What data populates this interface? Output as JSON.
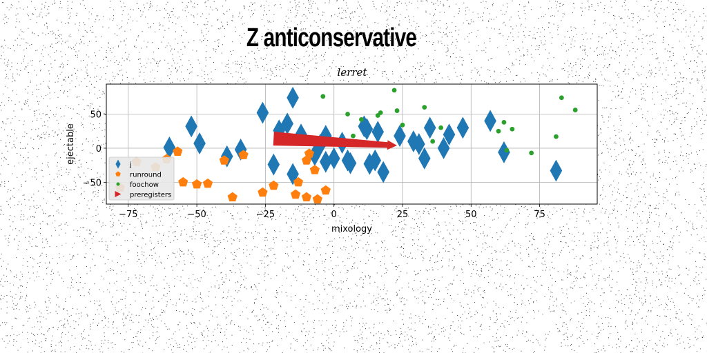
{
  "suptitle": "Z anticonservative",
  "chart_data": {
    "type": "scatter",
    "title": "lerret",
    "xlabel": "mixology",
    "ylabel": "ejectable",
    "xlim": [
      -83,
      96
    ],
    "ylim": [
      -82,
      94
    ],
    "xticks": [
      -75,
      -50,
      -25,
      0,
      25,
      50,
      75
    ],
    "yticks": [
      -50,
      0,
      50
    ],
    "grid": true,
    "legend_position": "lower-left",
    "series": [
      {
        "name": "j",
        "marker": "diamond",
        "color": "#1f77b4",
        "points": [
          [
            -60,
            1
          ],
          [
            -52,
            32
          ],
          [
            -49,
            7
          ],
          [
            -39,
            -12
          ],
          [
            -34,
            -2
          ],
          [
            -26,
            52
          ],
          [
            -22,
            -24
          ],
          [
            -20,
            26
          ],
          [
            -17,
            36
          ],
          [
            -15,
            74
          ],
          [
            -15,
            -38
          ],
          [
            -12,
            20
          ],
          [
            -7,
            -10
          ],
          [
            -5,
            5
          ],
          [
            -3,
            18
          ],
          [
            -3,
            -20
          ],
          [
            0,
            -15
          ],
          [
            3,
            8
          ],
          [
            5,
            -18
          ],
          [
            6,
            -22
          ],
          [
            11,
            32
          ],
          [
            12,
            28
          ],
          [
            13,
            -23
          ],
          [
            15,
            -18
          ],
          [
            16,
            24
          ],
          [
            18,
            -35
          ],
          [
            24,
            18
          ],
          [
            29,
            10
          ],
          [
            31,
            6
          ],
          [
            33,
            -15
          ],
          [
            35,
            30
          ],
          [
            40,
            0
          ],
          [
            42,
            20
          ],
          [
            47,
            30
          ],
          [
            57,
            40
          ],
          [
            62,
            -6
          ],
          [
            81,
            -33
          ]
        ]
      },
      {
        "name": "runround",
        "marker": "pentagon",
        "color": "#ff7f0e",
        "points": [
          [
            -78,
            -58
          ],
          [
            -72,
            -20
          ],
          [
            -65,
            -28
          ],
          [
            -61,
            -16
          ],
          [
            -57,
            -5
          ],
          [
            -55,
            -50
          ],
          [
            -50,
            -53
          ],
          [
            -46,
            -52
          ],
          [
            -40,
            -18
          ],
          [
            -37,
            -72
          ],
          [
            -33,
            -10
          ],
          [
            -26,
            -65
          ],
          [
            -22,
            -55
          ],
          [
            -14,
            -68
          ],
          [
            -13,
            -50
          ],
          [
            -10,
            -18
          ],
          [
            -9,
            -8
          ],
          [
            -10,
            -72
          ],
          [
            -7,
            -32
          ],
          [
            -6,
            -75
          ],
          [
            -3,
            -62
          ]
        ]
      },
      {
        "name": "foochow",
        "marker": "circle",
        "color": "#2ca02c",
        "points": [
          [
            -4,
            76
          ],
          [
            5,
            50
          ],
          [
            7,
            18
          ],
          [
            10,
            42
          ],
          [
            16,
            48
          ],
          [
            17,
            52
          ],
          [
            22,
            85
          ],
          [
            23,
            55
          ],
          [
            25,
            34
          ],
          [
            33,
            60
          ],
          [
            36,
            10
          ],
          [
            39,
            30
          ],
          [
            60,
            25
          ],
          [
            62,
            38
          ],
          [
            63,
            -3
          ],
          [
            65,
            28
          ],
          [
            72,
            -7
          ],
          [
            81,
            17
          ],
          [
            83,
            74
          ],
          [
            88,
            56
          ]
        ]
      }
    ],
    "arrow": {
      "name": "preregisters",
      "marker": "triangle-right",
      "color": "#d62728",
      "from": [
        -22,
        14
      ],
      "to": [
        23,
        4
      ]
    }
  }
}
